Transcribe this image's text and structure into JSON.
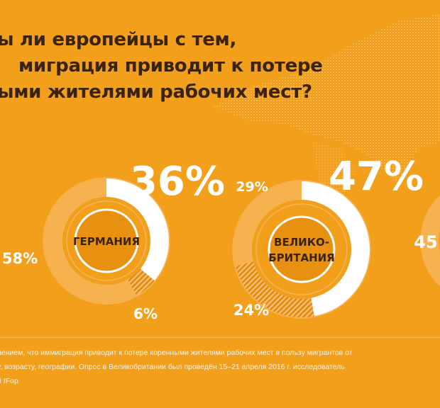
{
  "title": {
    "line1": "ы ли европейцы с тем,",
    "line2": "миграция приводит к потере",
    "line3": "ыми жителями рабочих мест?"
  },
  "chart_data": [
    {
      "type": "pie",
      "center_label": "ГЕРМАНИЯ",
      "values": [
        36,
        6,
        58
      ],
      "data_labels": [
        "36%",
        "6%",
        "58%"
      ]
    },
    {
      "type": "pie",
      "center_label": "ВЕЛИКО-БРИТАНИЯ",
      "center_label_lines": [
        "ВЕЛИКО-",
        "БРИТАНИЯ"
      ],
      "values": [
        47,
        24,
        29
      ],
      "data_labels": [
        "47%",
        "24%",
        "29%"
      ]
    },
    {
      "type": "pie",
      "values": [
        45
      ],
      "data_labels": [
        "45"
      ]
    }
  ],
  "colors": {
    "background": "#f29f1c",
    "segment_agree": "#ffffff",
    "segment_neutral": "#f7c37a",
    "segment_disagree": "#e58a10",
    "ring_track": "#f6b24f",
    "center_circle": "#e8900f",
    "center_text": "#3a2410",
    "title_text": "#3a2410"
  },
  "footnote": {
    "line1": "нением, что иммиграция приводит к потере коренными жителями рабочих мест в пользу мигрантов от",
    "line2": "у, возрасту, географии. Опрос в Великобритании был проведён 15–21 апреля 2016 г. исследователь",
    "line3": "й IFop"
  }
}
